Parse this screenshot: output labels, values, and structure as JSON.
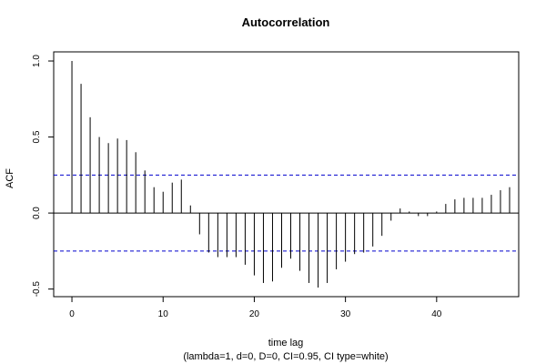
{
  "chart_data": {
    "type": "bar",
    "title": "Autocorrelation",
    "xlabel": "time lag",
    "subtitle": "(lambda=1, d=0, D=0, CI=0.95, CI type=white)",
    "ylabel": "ACF",
    "xlim": [
      -2,
      49
    ],
    "ylim": [
      -0.55,
      1.06
    ],
    "x_ticks": [
      0,
      10,
      20,
      30,
      40
    ],
    "y_ticks": [
      -0.5,
      0.0,
      0.5,
      1.0
    ],
    "x_tick_labels": [
      "0",
      "10",
      "20",
      "30",
      "40"
    ],
    "y_tick_labels": [
      "-0.5",
      "0.0",
      "0.5",
      "1.0"
    ],
    "confidence_band": [
      0.25,
      -0.25
    ],
    "colors": {
      "bars": "#000000",
      "band": "#0000cd"
    },
    "lags": [
      0,
      1,
      2,
      3,
      4,
      5,
      6,
      7,
      8,
      9,
      10,
      11,
      12,
      13,
      14,
      15,
      16,
      17,
      18,
      19,
      20,
      21,
      22,
      23,
      24,
      25,
      26,
      27,
      28,
      29,
      30,
      31,
      32,
      33,
      34,
      35,
      36,
      37,
      38,
      39,
      40,
      41,
      42,
      43,
      44,
      45,
      46,
      47,
      48
    ],
    "values": [
      1.0,
      0.85,
      0.63,
      0.5,
      0.46,
      0.49,
      0.48,
      0.4,
      0.28,
      0.17,
      0.14,
      0.2,
      0.22,
      0.05,
      -0.14,
      -0.26,
      -0.29,
      -0.29,
      -0.29,
      -0.34,
      -0.41,
      -0.46,
      -0.45,
      -0.36,
      -0.3,
      -0.38,
      -0.46,
      -0.49,
      -0.46,
      -0.37,
      -0.32,
      -0.27,
      -0.26,
      -0.22,
      -0.15,
      -0.05,
      0.03,
      0.01,
      -0.02,
      -0.02,
      0.01,
      0.06,
      0.09,
      0.1,
      0.1,
      0.1,
      0.12,
      0.15,
      0.17
    ]
  }
}
